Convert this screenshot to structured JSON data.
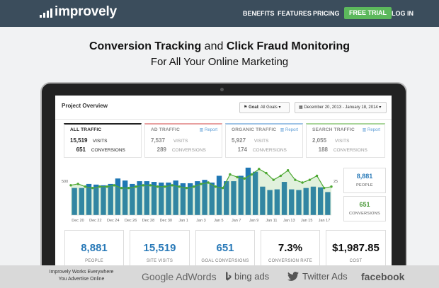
{
  "header": {
    "logo_text": "improvely",
    "nav": [
      "BENEFITS",
      "FEATURES",
      "PRICING"
    ],
    "cta": "FREE TRIAL",
    "login": "LOG IN",
    "colors": {
      "bar": "#3b4d5c",
      "cta": "#5cb85c"
    }
  },
  "hero": {
    "title_part1": "Conversion Tracking",
    "title_and": "and",
    "title_part2": "Click Fraud Monitoring",
    "subtitle": "For All Your Online Marketing"
  },
  "dashboard": {
    "title": "Project Overview",
    "goal_filter": {
      "prefix": "Goal:",
      "value": "All Goals"
    },
    "date_range": "December 20, 2013 - January 18, 2014",
    "tabs": [
      {
        "title": "ALL TRAFFIC",
        "visits": "15,519",
        "visits_label": "VISITS",
        "conversions": "651",
        "conversions_label": "CONVERSIONS",
        "report": "",
        "accent": "#222222"
      },
      {
        "title": "AD TRAFFIC",
        "visits": "7,537",
        "visits_label": "VISITS",
        "conversions": "289",
        "conversions_label": "CONVERSIONS",
        "report": "Report",
        "accent": "#e8a0a0"
      },
      {
        "title": "ORGANIC TRAFFIC",
        "visits": "5,927",
        "visits_label": "VISITS",
        "conversions": "174",
        "conversions_label": "CONVERSIONS",
        "report": "Report",
        "accent": "#9ec3e6"
      },
      {
        "title": "SEARCH TRAFFIC",
        "visits": "2,055",
        "visits_label": "VISITS",
        "conversions": "188",
        "conversions_label": "CONVERSIONS",
        "report": "Report",
        "accent": "#a9d59a"
      }
    ],
    "side_stats": [
      {
        "value": "8,881",
        "label": "PEOPLE",
        "color": "#2a7ab8"
      },
      {
        "value": "651",
        "label": "CONVERSIONS",
        "color": "#4e9a3c"
      }
    ],
    "kpis": [
      {
        "value": "8,881",
        "label": "PEOPLE",
        "color": "#2a7ab8"
      },
      {
        "value": "15,519",
        "label": "SITE VISITS",
        "color": "#2a7ab8"
      },
      {
        "value": "651",
        "label": "GOAL CONVERSIONS",
        "color": "#2a7ab8"
      },
      {
        "value": "7.3%",
        "label": "CONVERSION RATE",
        "color": "#111111"
      },
      {
        "value": "$1,987.85",
        "label": "COST",
        "color": "#111111"
      }
    ]
  },
  "chart_data": {
    "type": "bar",
    "title": "",
    "xlabel": "",
    "ylabel": "",
    "y_left_tick": "500",
    "y_right_tick": "25",
    "x_tick_labels": [
      "Dec 20",
      "Dec 22",
      "Dec 24",
      "Dec 26",
      "Dec 28",
      "Dec 30",
      "Jan 1",
      "Jan 3",
      "Jan 5",
      "Jan 7",
      "Jan 9",
      "Jan 11",
      "Jan 13",
      "Jan 15",
      "Jan 17"
    ],
    "ylim": [
      0,
      720
    ],
    "y2lim": [
      0,
      36
    ],
    "series": [
      {
        "type": "bar",
        "color": "#1f77b4",
        "values": [
          400,
          400,
          460,
          450,
          440,
          460,
          540,
          510,
          460,
          500,
          500,
          490,
          480,
          480,
          510,
          470,
          470,
          500,
          520,
          480,
          580,
          500,
          500,
          580,
          700,
          640,
          420,
          370,
          380,
          490,
          380,
          370,
          400,
          420,
          410,
          340
        ]
      },
      {
        "type": "line",
        "color": "#4da832",
        "axis": "right",
        "values": [
          22,
          23,
          21,
          20,
          21,
          21,
          22,
          20,
          20,
          21,
          22,
          22,
          21,
          21,
          22,
          21,
          20,
          21,
          23,
          24,
          21,
          20,
          30,
          28,
          27,
          30,
          34,
          31,
          26,
          29,
          33,
          26,
          24,
          26,
          29,
          20,
          21
        ]
      }
    ],
    "grid": false,
    "legend": "none"
  },
  "footer": {
    "tagline_line1": "Improvely Works Everywhere",
    "tagline_line2": "You Advertise Online",
    "partners": [
      "Google AdWords",
      "bing ads",
      "Twitter Ads",
      "facebook"
    ]
  }
}
